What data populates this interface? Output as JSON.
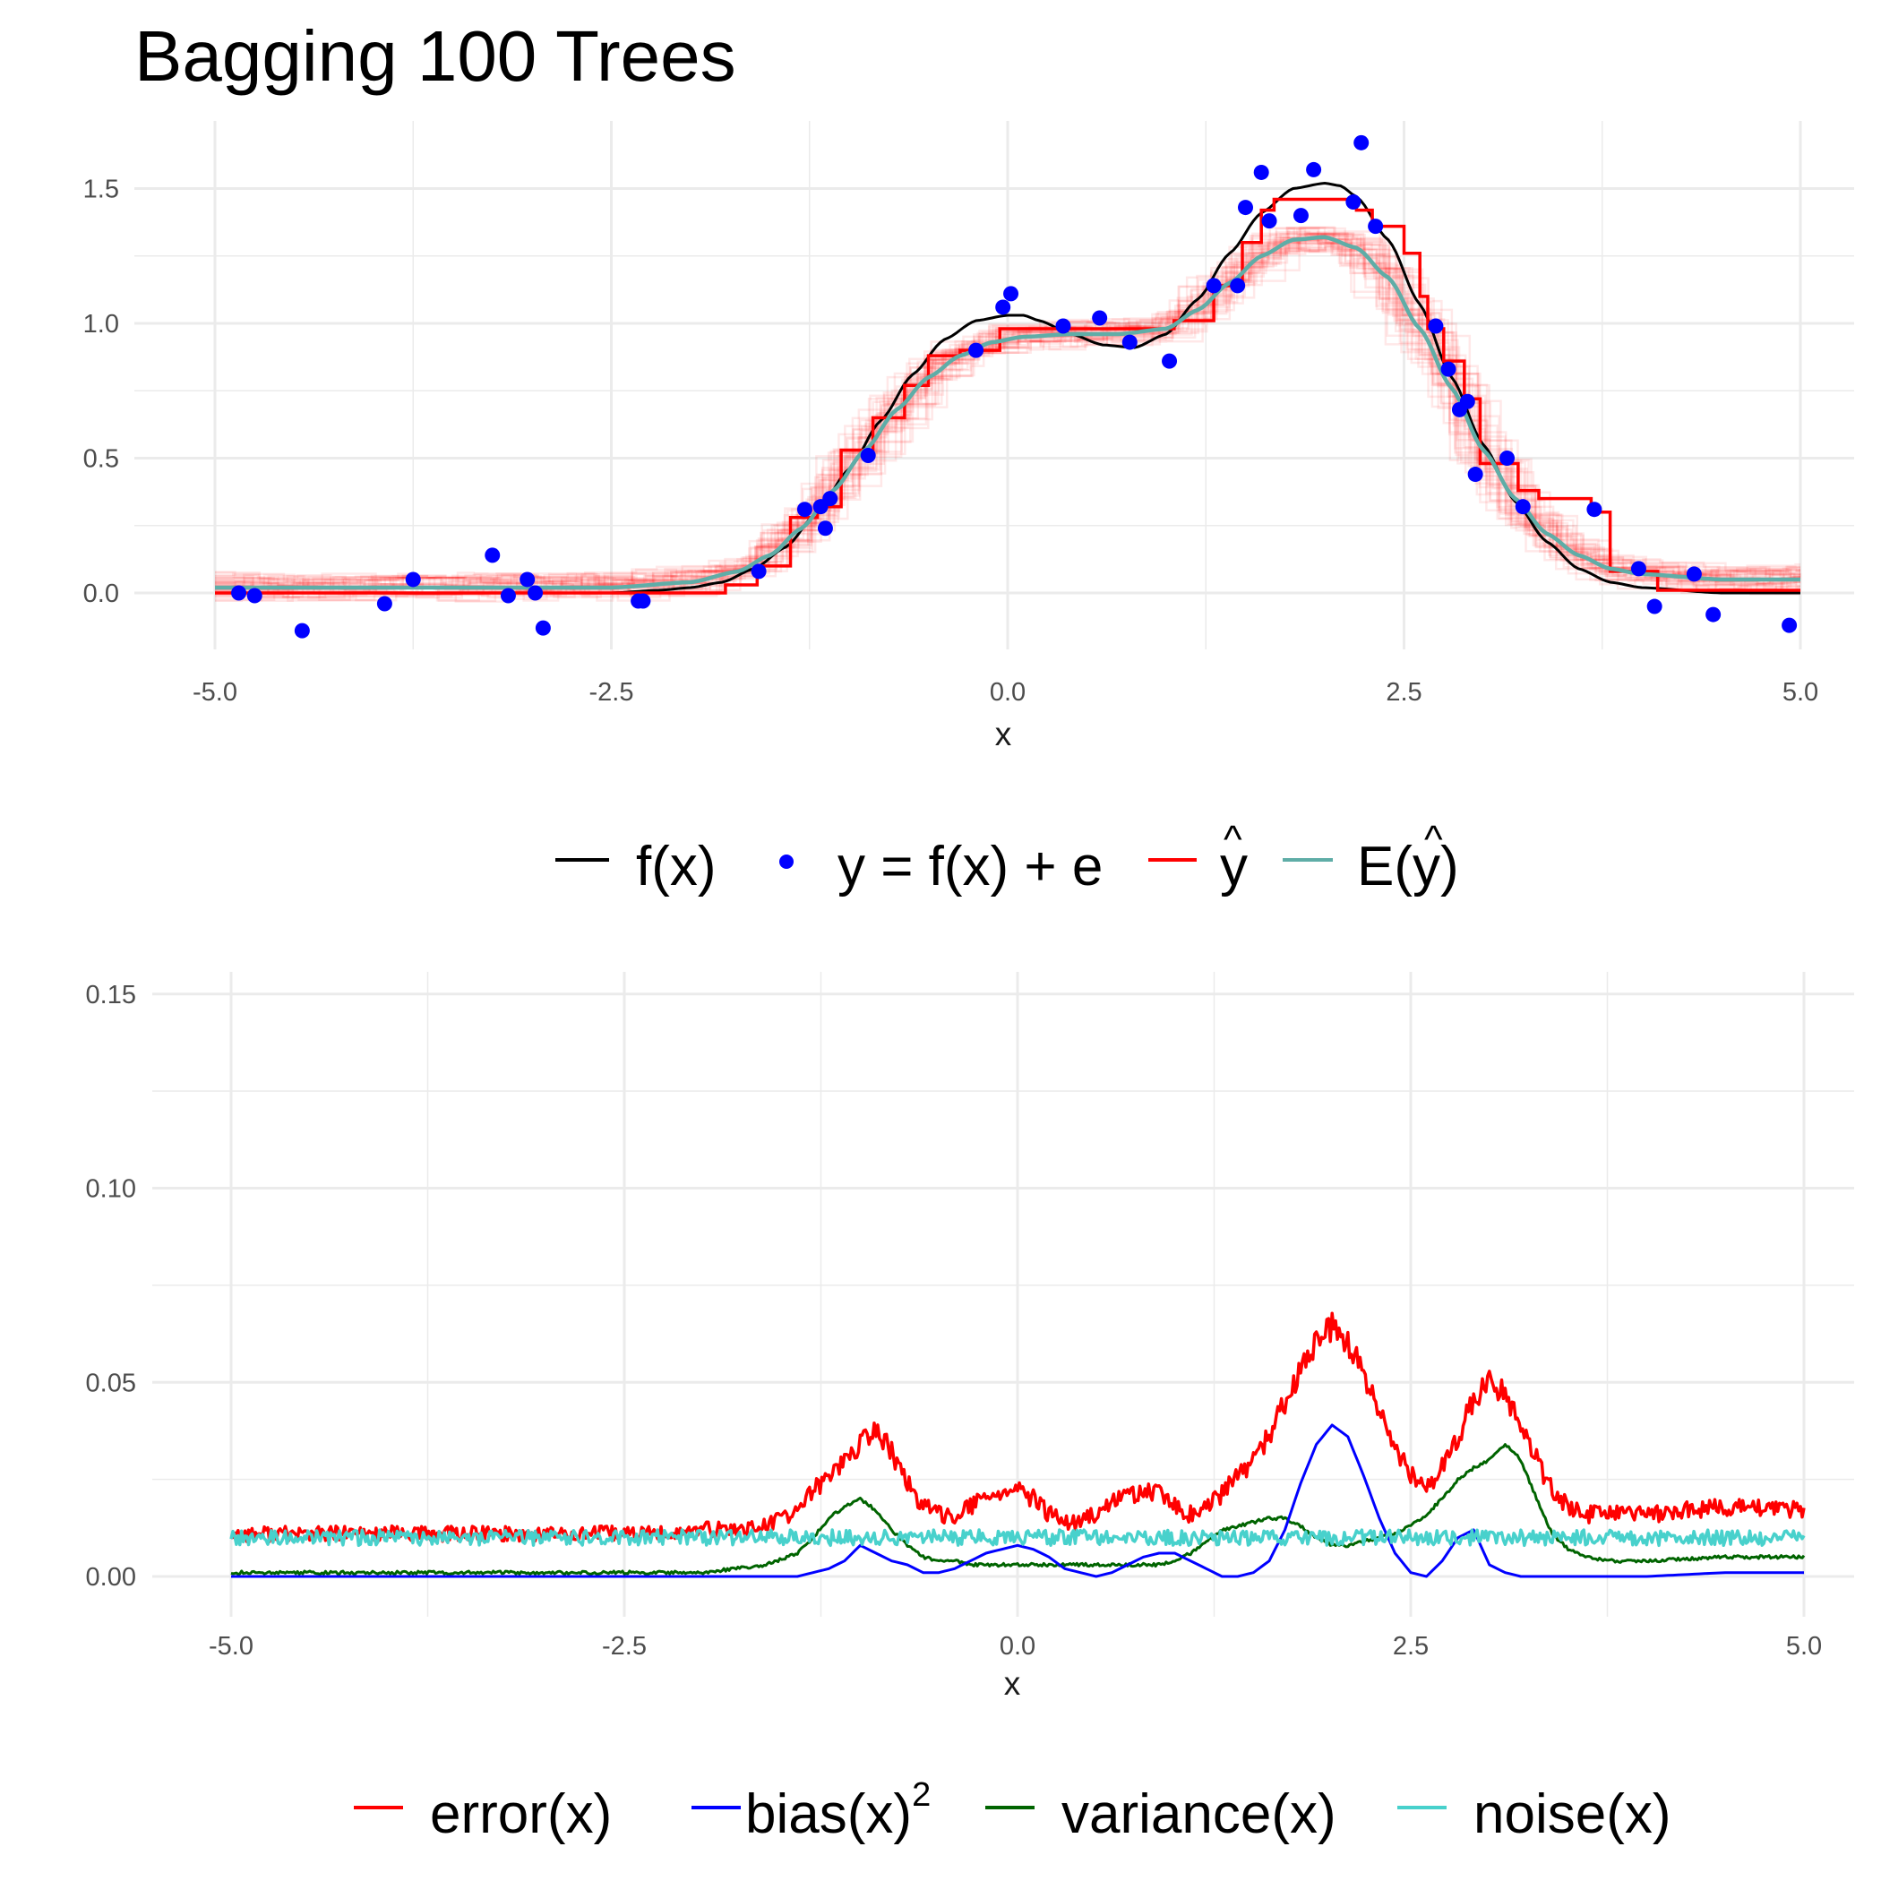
{
  "title": "Bagging 100 Trees",
  "colors": {
    "truth": "#000000",
    "points": "#0000ff",
    "yhat": "#ff0000",
    "eyhat": "#5fada7",
    "error": "#ff0000",
    "bias": "#0000ff",
    "variance": "#006400",
    "noise": "#48d1cc"
  },
  "chart_data": [
    {
      "type": "line",
      "title": "Bagging 100 Trees",
      "xlabel": "x",
      "ylabel": "",
      "xlim": [
        -5,
        5
      ],
      "ylim": [
        -0.2,
        1.75
      ],
      "xticks": [
        "-5.0",
        "-2.5",
        "0.0",
        "2.5",
        "5.0"
      ],
      "yticks": [
        "0.0",
        "0.5",
        "1.0",
        "1.5"
      ],
      "grid": true,
      "legend_position": "bottom",
      "legend": {
        "f": "f",
        "y_eq": "y = f",
        "plus_e": "+ e",
        "yhat": "y",
        "e_yhat": "E",
        "x_arg": "x",
        "hat": "^"
      },
      "points": {
        "x": [
          -4.85,
          -4.75,
          -4.45,
          -3.93,
          -3.75,
          -3.25,
          -3.15,
          -3.03,
          -2.98,
          -2.93,
          -2.33,
          -2.3,
          -1.57,
          -1.28,
          -1.18,
          -1.15,
          -1.12,
          -0.88,
          -0.2,
          -0.03,
          0.02,
          0.35,
          0.58,
          0.77,
          1.02,
          1.3,
          1.45,
          1.5,
          1.6,
          1.65,
          1.85,
          1.93,
          2.18,
          2.23,
          2.32,
          2.7,
          2.78,
          2.85,
          2.9,
          2.95,
          3.15,
          3.25,
          3.7,
          3.98,
          4.08,
          4.33,
          4.45,
          4.93
        ],
        "y": [
          0.0,
          -0.01,
          -0.14,
          -0.04,
          0.05,
          0.14,
          -0.01,
          0.05,
          0.0,
          -0.13,
          -0.03,
          -0.03,
          0.08,
          0.31,
          0.32,
          0.24,
          0.35,
          0.51,
          0.9,
          1.06,
          1.11,
          0.99,
          1.02,
          0.93,
          0.86,
          1.14,
          1.14,
          1.43,
          1.56,
          1.38,
          1.4,
          1.57,
          1.45,
          1.67,
          1.36,
          0.99,
          0.83,
          0.68,
          0.71,
          0.44,
          0.5,
          0.32,
          0.31,
          0.09,
          -0.05,
          0.07,
          -0.08,
          -0.12
        ]
      },
      "truth": {
        "x": [
          -5.0,
          -4.0,
          -3.0,
          -2.5,
          -2.2,
          -2.0,
          -1.8,
          -1.6,
          -1.4,
          -1.2,
          -1.0,
          -0.8,
          -0.6,
          -0.4,
          -0.2,
          0.0,
          0.1,
          0.2,
          0.4,
          0.6,
          0.8,
          1.0,
          1.2,
          1.4,
          1.6,
          1.8,
          2.0,
          2.1,
          2.2,
          2.4,
          2.6,
          2.8,
          3.0,
          3.2,
          3.4,
          3.6,
          3.8,
          4.0,
          4.5,
          5.0
        ],
        "y": [
          0.0,
          0.0,
          0.0,
          0.0,
          0.01,
          0.02,
          0.04,
          0.09,
          0.17,
          0.3,
          0.46,
          0.64,
          0.81,
          0.94,
          1.01,
          1.03,
          1.03,
          1.01,
          0.96,
          0.92,
          0.91,
          0.96,
          1.09,
          1.26,
          1.41,
          1.5,
          1.52,
          1.51,
          1.47,
          1.31,
          1.07,
          0.8,
          0.55,
          0.34,
          0.19,
          0.09,
          0.04,
          0.02,
          0.0,
          0.0
        ]
      },
      "e_yhat": {
        "x": [
          -5.0,
          -3.0,
          -2.5,
          -2.0,
          -1.7,
          -1.5,
          -1.3,
          -1.1,
          -0.9,
          -0.7,
          -0.5,
          -0.3,
          -0.1,
          0.1,
          0.4,
          0.7,
          1.0,
          1.2,
          1.4,
          1.6,
          1.8,
          2.0,
          2.2,
          2.4,
          2.6,
          2.8,
          3.0,
          3.2,
          3.4,
          3.6,
          3.8,
          4.0,
          4.5,
          5.0
        ],
        "y": [
          0.02,
          0.02,
          0.02,
          0.04,
          0.08,
          0.14,
          0.24,
          0.38,
          0.53,
          0.68,
          0.8,
          0.88,
          0.93,
          0.95,
          0.96,
          0.96,
          0.98,
          1.05,
          1.15,
          1.25,
          1.31,
          1.32,
          1.28,
          1.17,
          0.98,
          0.76,
          0.53,
          0.35,
          0.22,
          0.14,
          0.09,
          0.07,
          0.05,
          0.05
        ]
      },
      "yhat_step": {
        "x": [
          -5.0,
          -1.78,
          -1.58,
          -1.37,
          -1.2,
          -1.05,
          -0.85,
          -0.65,
          -0.5,
          -0.3,
          -0.05,
          0.3,
          1.05,
          1.3,
          1.48,
          1.6,
          1.68,
          2.2,
          2.3,
          2.5,
          2.6,
          2.65,
          2.75,
          2.88,
          2.98,
          3.22,
          3.35,
          3.68,
          3.8,
          4.1,
          5.0
        ],
        "y": [
          0.0,
          0.03,
          0.1,
          0.28,
          0.32,
          0.53,
          0.65,
          0.77,
          0.88,
          0.9,
          0.98,
          0.98,
          1.01,
          1.14,
          1.3,
          1.42,
          1.46,
          1.42,
          1.36,
          1.26,
          1.1,
          0.98,
          0.86,
          0.72,
          0.48,
          0.38,
          0.35,
          0.3,
          0.08,
          0.01,
          0.01
        ]
      }
    },
    {
      "type": "line",
      "xlabel": "x",
      "ylabel": "",
      "xlim": [
        -5,
        5
      ],
      "ylim": [
        -0.002,
        0.153
      ],
      "xticks": [
        "-5.0",
        "-2.5",
        "0.0",
        "2.5",
        "5.0"
      ],
      "yticks": [
        "0.00",
        "0.05",
        "0.10",
        "0.15"
      ],
      "grid": true,
      "legend_position": "bottom",
      "legend": {
        "error": "error",
        "bias": "bias",
        "variance": "variance",
        "noise": "noise",
        "x_arg": "x",
        "sup": "2"
      },
      "x": [
        -5.0,
        -4.0,
        -3.0,
        -2.5,
        -2.2,
        -2.0,
        -1.8,
        -1.6,
        -1.4,
        -1.3,
        -1.2,
        -1.1,
        -1.0,
        -0.9,
        -0.8,
        -0.7,
        -0.6,
        -0.5,
        -0.4,
        -0.3,
        -0.2,
        -0.1,
        0.0,
        0.1,
        0.2,
        0.3,
        0.4,
        0.5,
        0.6,
        0.7,
        0.8,
        0.9,
        1.0,
        1.1,
        1.2,
        1.3,
        1.4,
        1.5,
        1.6,
        1.7,
        1.8,
        1.9,
        2.0,
        2.1,
        2.2,
        2.3,
        2.4,
        2.5,
        2.6,
        2.7,
        2.8,
        2.9,
        3.0,
        3.1,
        3.2,
        3.3,
        3.4,
        3.5,
        3.6,
        3.8,
        4.0,
        4.5,
        5.0
      ],
      "series": [
        {
          "key": "error",
          "values": [
            0.011,
            0.011,
            0.011,
            0.011,
            0.011,
            0.012,
            0.012,
            0.013,
            0.017,
            0.022,
            0.026,
            0.03,
            0.034,
            0.038,
            0.032,
            0.024,
            0.018,
            0.016,
            0.016,
            0.018,
            0.02,
            0.022,
            0.022,
            0.02,
            0.016,
            0.014,
            0.014,
            0.016,
            0.019,
            0.021,
            0.022,
            0.021,
            0.018,
            0.016,
            0.018,
            0.021,
            0.026,
            0.03,
            0.036,
            0.045,
            0.053,
            0.06,
            0.064,
            0.06,
            0.052,
            0.042,
            0.033,
            0.026,
            0.023,
            0.028,
            0.036,
            0.046,
            0.05,
            0.047,
            0.04,
            0.03,
            0.022,
            0.018,
            0.016,
            0.016,
            0.016,
            0.018,
            0.017
          ]
        },
        {
          "key": "bias",
          "values": [
            0.0,
            0.0,
            0.0,
            0.0,
            0.0,
            0.0,
            0.0,
            0.0,
            0.0,
            0.001,
            0.002,
            0.004,
            0.008,
            0.006,
            0.004,
            0.003,
            0.001,
            0.001,
            0.002,
            0.004,
            0.006,
            0.007,
            0.008,
            0.007,
            0.005,
            0.002,
            0.001,
            0.0,
            0.001,
            0.003,
            0.005,
            0.006,
            0.006,
            0.004,
            0.002,
            0.0,
            0.0,
            0.001,
            0.004,
            0.012,
            0.024,
            0.034,
            0.039,
            0.036,
            0.026,
            0.015,
            0.006,
            0.001,
            0.0,
            0.004,
            0.01,
            0.012,
            0.003,
            0.001,
            0.0,
            0.0,
            0.0,
            0.0,
            0.0,
            0.0,
            0.0,
            0.001,
            0.001
          ]
        },
        {
          "key": "variance",
          "values": [
            0.001,
            0.001,
            0.001,
            0.001,
            0.001,
            0.001,
            0.002,
            0.003,
            0.006,
            0.01,
            0.015,
            0.018,
            0.02,
            0.017,
            0.012,
            0.008,
            0.005,
            0.004,
            0.004,
            0.003,
            0.003,
            0.003,
            0.003,
            0.003,
            0.003,
            0.003,
            0.003,
            0.003,
            0.003,
            0.003,
            0.003,
            0.003,
            0.004,
            0.006,
            0.009,
            0.012,
            0.013,
            0.014,
            0.015,
            0.015,
            0.013,
            0.01,
            0.008,
            0.008,
            0.009,
            0.01,
            0.011,
            0.013,
            0.016,
            0.02,
            0.025,
            0.028,
            0.03,
            0.034,
            0.03,
            0.02,
            0.011,
            0.007,
            0.005,
            0.004,
            0.004,
            0.005,
            0.005
          ]
        },
        {
          "key": "noise",
          "values": [
            0.01,
            0.01,
            0.01,
            0.01,
            0.01,
            0.01,
            0.01,
            0.01,
            0.01,
            0.01,
            0.01,
            0.01,
            0.01,
            0.01,
            0.01,
            0.01,
            0.01,
            0.01,
            0.01,
            0.01,
            0.01,
            0.01,
            0.01,
            0.01,
            0.01,
            0.01,
            0.01,
            0.01,
            0.01,
            0.01,
            0.01,
            0.01,
            0.01,
            0.01,
            0.01,
            0.01,
            0.01,
            0.01,
            0.01,
            0.01,
            0.01,
            0.01,
            0.01,
            0.01,
            0.01,
            0.01,
            0.01,
            0.01,
            0.01,
            0.01,
            0.01,
            0.01,
            0.01,
            0.01,
            0.01,
            0.01,
            0.01,
            0.01,
            0.01,
            0.01,
            0.01,
            0.01,
            0.01
          ]
        }
      ]
    }
  ]
}
